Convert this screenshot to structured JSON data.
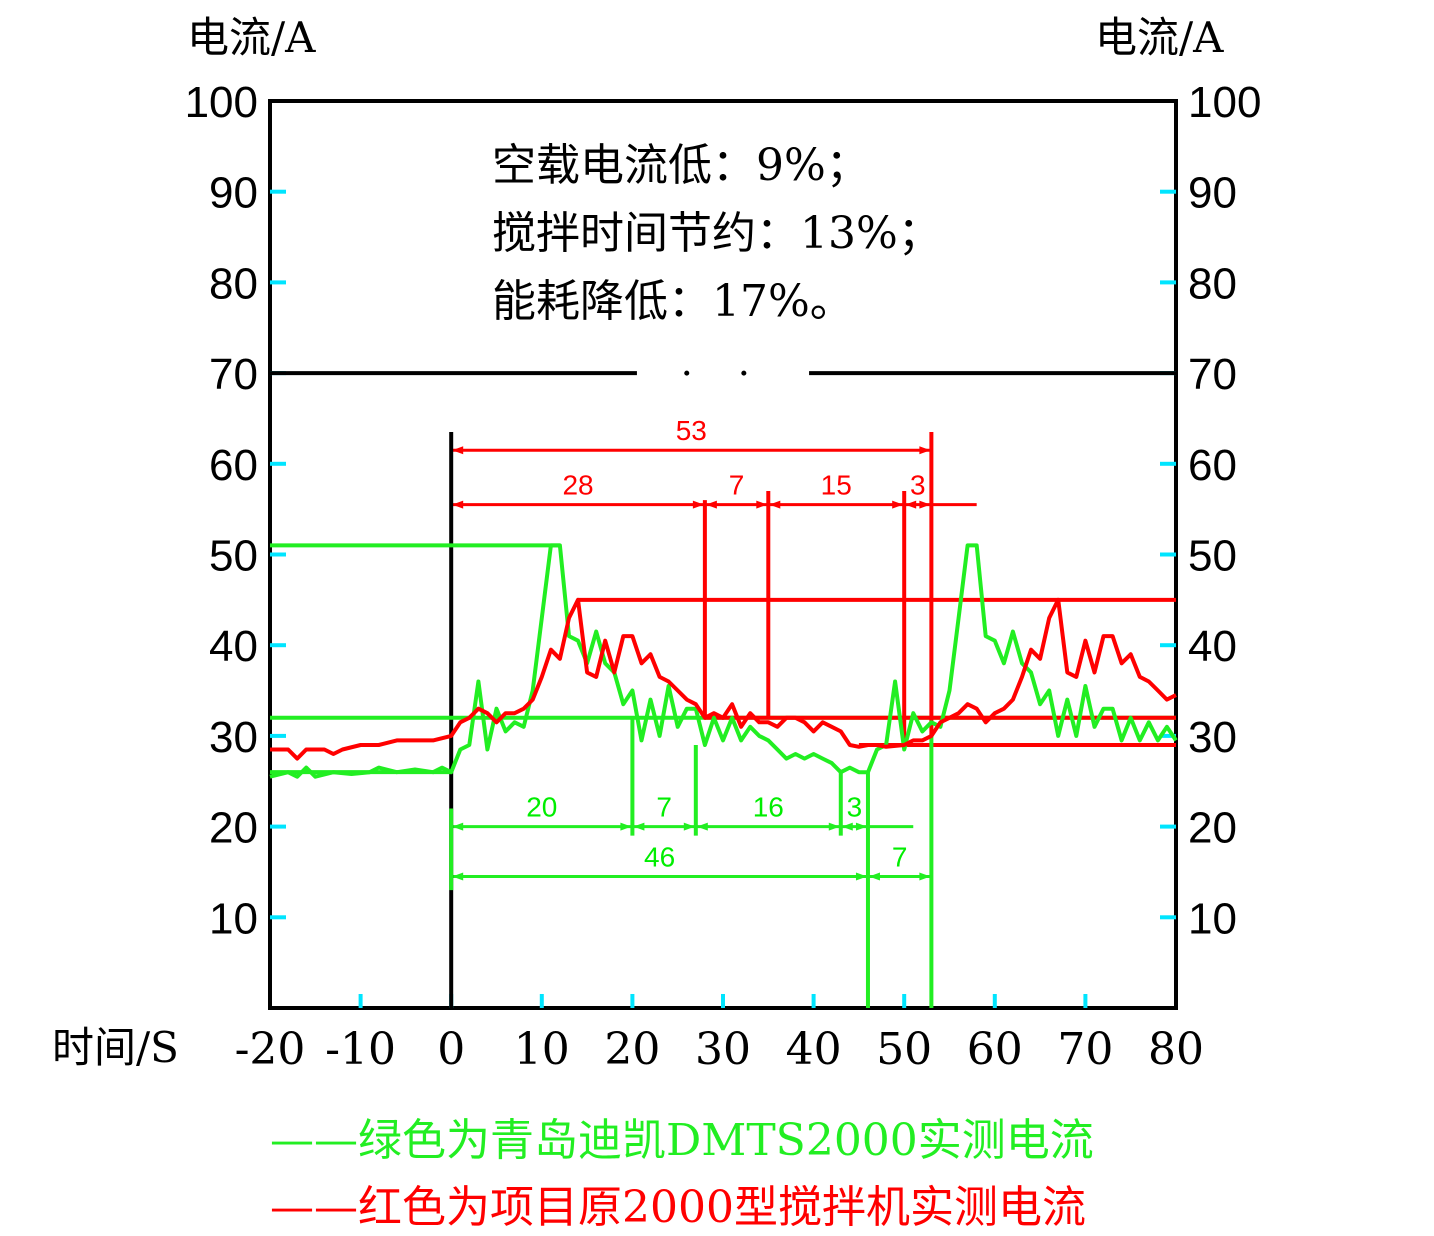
{
  "chart_data": {
    "type": "line",
    "ylabel_left": "电流/A",
    "ylabel_right": "电流/A",
    "xlabel": "时间/S",
    "xlim": [
      -20,
      80
    ],
    "ylim": [
      0,
      100
    ],
    "y_ticks": [
      "10",
      "20",
      "30",
      "40",
      "50",
      "60",
      "70",
      "80",
      "90",
      "100"
    ],
    "x_ticks": [
      "-20",
      "-10",
      "0",
      "10",
      "20",
      "30",
      "40",
      "50",
      "60",
      "70",
      "80"
    ],
    "notes": [
      "空载电流低：9%；",
      "搅拌时间节约：13%；",
      "能耗降低：17%。"
    ],
    "series": [
      {
        "name": "绿色为青岛迪凯DMTS2000实测电流",
        "color": "#22ee22",
        "points": [
          [
            -20,
            25.5
          ],
          [
            -18,
            26
          ],
          [
            -17,
            25.5
          ],
          [
            -16,
            26.5
          ],
          [
            -15,
            25.5
          ],
          [
            -13,
            26
          ],
          [
            -11,
            25.8
          ],
          [
            -9,
            26
          ],
          [
            -8,
            26.5
          ],
          [
            -6,
            26
          ],
          [
            -4,
            26.3
          ],
          [
            -2,
            26
          ],
          [
            -1,
            26.5
          ],
          [
            0,
            26
          ],
          [
            1,
            28.5
          ],
          [
            2,
            29
          ],
          [
            3,
            36
          ],
          [
            4,
            28.5
          ],
          [
            5,
            33
          ],
          [
            6,
            30.5
          ],
          [
            7,
            31.5
          ],
          [
            8,
            31
          ],
          [
            9,
            35
          ],
          [
            10,
            43
          ],
          [
            11,
            51
          ],
          [
            12,
            51
          ],
          [
            13,
            41
          ],
          [
            14,
            40.5
          ],
          [
            15,
            38
          ],
          [
            16,
            41.5
          ],
          [
            17,
            38
          ],
          [
            18,
            37
          ],
          [
            19,
            33.5
          ],
          [
            20,
            35
          ],
          [
            21,
            29.5
          ],
          [
            22,
            34
          ],
          [
            23,
            30
          ],
          [
            24,
            35.5
          ],
          [
            25,
            31
          ],
          [
            26,
            33
          ],
          [
            27,
            33
          ],
          [
            28,
            29
          ],
          [
            29,
            32
          ],
          [
            30,
            29.5
          ],
          [
            31,
            32
          ],
          [
            32,
            29.5
          ],
          [
            33,
            31
          ],
          [
            34,
            30
          ],
          [
            35,
            29.5
          ],
          [
            36,
            28.5
          ],
          [
            37,
            27.5
          ],
          [
            38,
            28
          ],
          [
            39,
            27.5
          ],
          [
            40,
            28
          ],
          [
            41,
            27.5
          ],
          [
            42,
            27
          ],
          [
            43,
            26
          ],
          [
            44,
            26.5
          ],
          [
            45,
            26
          ],
          [
            46,
            26
          ],
          [
            47,
            28.5
          ],
          [
            48,
            29
          ],
          [
            49,
            36
          ],
          [
            50,
            28.5
          ],
          [
            51,
            32.5
          ],
          [
            52,
            30.5
          ],
          [
            53,
            31.5
          ],
          [
            54,
            31
          ],
          [
            55,
            35
          ],
          [
            56,
            43
          ],
          [
            57,
            51
          ],
          [
            58,
            51
          ],
          [
            59,
            41
          ],
          [
            60,
            40.5
          ],
          [
            61,
            38
          ],
          [
            62,
            41.5
          ],
          [
            63,
            38
          ],
          [
            64,
            37
          ],
          [
            65,
            33.5
          ],
          [
            66,
            35
          ],
          [
            67,
            30
          ],
          [
            68,
            34
          ],
          [
            69,
            30
          ],
          [
            70,
            35.5
          ],
          [
            71,
            31
          ],
          [
            72,
            33
          ],
          [
            73,
            33
          ],
          [
            74,
            29.5
          ],
          [
            75,
            32
          ],
          [
            76,
            29.5
          ],
          [
            77,
            31.5
          ],
          [
            78,
            29.5
          ],
          [
            79,
            31
          ],
          [
            80,
            29.5
          ]
        ]
      },
      {
        "name": "红色为项目原2000型搅拌机实测电流",
        "color": "#ff0000",
        "points": [
          [
            -20,
            28.5
          ],
          [
            -18,
            28.5
          ],
          [
            -17,
            27.5
          ],
          [
            -16,
            28.5
          ],
          [
            -14,
            28.5
          ],
          [
            -13,
            28
          ],
          [
            -12,
            28.5
          ],
          [
            -10,
            29
          ],
          [
            -8,
            29
          ],
          [
            -6,
            29.5
          ],
          [
            -4,
            29.5
          ],
          [
            -2,
            29.5
          ],
          [
            0,
            30
          ],
          [
            1,
            31.5
          ],
          [
            2,
            32
          ],
          [
            3,
            33
          ],
          [
            4,
            32.5
          ],
          [
            5,
            31.5
          ],
          [
            6,
            32.5
          ],
          [
            7,
            32.5
          ],
          [
            8,
            33
          ],
          [
            9,
            34
          ],
          [
            10,
            36.5
          ],
          [
            11,
            39.5
          ],
          [
            12,
            38.5
          ],
          [
            13,
            43
          ],
          [
            14,
            45
          ],
          [
            15,
            37
          ],
          [
            16,
            36.5
          ],
          [
            17,
            40.5
          ],
          [
            18,
            37
          ],
          [
            19,
            41
          ],
          [
            20,
            41
          ],
          [
            21,
            38
          ],
          [
            22,
            39
          ],
          [
            23,
            36.5
          ],
          [
            24,
            36
          ],
          [
            25,
            35
          ],
          [
            26,
            34
          ],
          [
            27,
            33.5
          ],
          [
            28,
            32
          ],
          [
            29,
            32.5
          ],
          [
            30,
            32
          ],
          [
            31,
            33.5
          ],
          [
            32,
            31
          ],
          [
            33,
            32.5
          ],
          [
            34,
            31.5
          ],
          [
            35,
            31.5
          ],
          [
            36,
            31
          ],
          [
            37,
            32
          ],
          [
            38,
            32
          ],
          [
            39,
            31.5
          ],
          [
            40,
            30.5
          ],
          [
            41,
            31.5
          ],
          [
            42,
            31
          ],
          [
            43,
            30.5
          ],
          [
            44,
            29
          ],
          [
            45,
            28.8
          ],
          [
            46,
            29
          ],
          [
            47,
            29
          ],
          [
            48,
            28.8
          ],
          [
            50,
            29
          ],
          [
            51,
            29.5
          ],
          [
            52,
            29.5
          ],
          [
            53,
            30
          ],
          [
            54,
            31.5
          ],
          [
            55,
            32
          ],
          [
            56,
            32.5
          ],
          [
            57,
            33.5
          ],
          [
            58,
            33
          ],
          [
            59,
            31.5
          ],
          [
            60,
            32.5
          ],
          [
            61,
            33
          ],
          [
            62,
            34
          ],
          [
            63,
            36.5
          ],
          [
            64,
            39.5
          ],
          [
            65,
            38.5
          ],
          [
            66,
            43
          ],
          [
            67,
            45
          ],
          [
            68,
            37
          ],
          [
            69,
            36.5
          ],
          [
            70,
            40.5
          ],
          [
            71,
            37
          ],
          [
            72,
            41
          ],
          [
            73,
            41
          ],
          [
            74,
            38
          ],
          [
            75,
            39
          ],
          [
            76,
            36.5
          ],
          [
            77,
            36
          ],
          [
            78,
            35
          ],
          [
            79,
            34
          ],
          [
            80,
            34.5
          ]
        ]
      }
    ],
    "red_ref_lines": [
      45,
      32,
      29
    ],
    "green_ref_lines": [
      51,
      32,
      26
    ],
    "red_annotations": {
      "total_label": "53",
      "total_range": [
        0,
        53
      ],
      "segments": [
        {
          "label": "28",
          "range": [
            0,
            28
          ]
        },
        {
          "label": "7",
          "range": [
            28,
            35
          ]
        },
        {
          "label": "15",
          "range": [
            35,
            50
          ]
        },
        {
          "label": "3",
          "range": [
            50,
            53
          ]
        }
      ]
    },
    "green_annotations": {
      "total_label": "46",
      "total_range": [
        0,
        46
      ],
      "extra_label": "7",
      "extra_range": [
        46,
        53
      ],
      "segments": [
        {
          "label": "20",
          "range": [
            0,
            20
          ]
        },
        {
          "label": "7",
          "range": [
            20,
            27
          ]
        },
        {
          "label": "16",
          "range": [
            27,
            43
          ]
        },
        {
          "label": "3",
          "range": [
            43,
            46
          ]
        }
      ]
    },
    "grid": false
  },
  "legend": {
    "dash": "——",
    "green_text": "绿色为青岛迪凯DMTS2000实测电流",
    "red_text": "红色为项目原2000型搅拌机实测电流"
  }
}
